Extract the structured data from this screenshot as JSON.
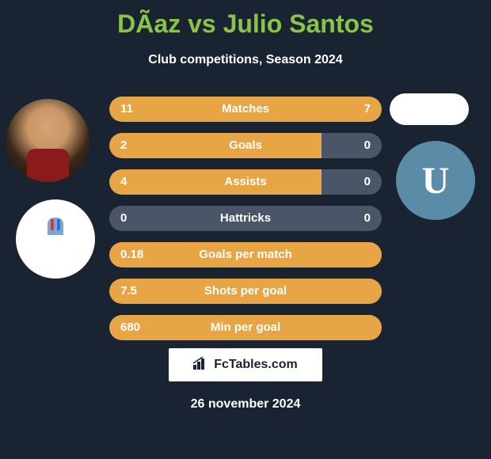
{
  "title": "DÃ­az vs Julio Santos",
  "subtitle": "Club competitions, Season 2024",
  "date": "26 november 2024",
  "logo_text": "FcTables.com",
  "club_right_letter": "U",
  "colors": {
    "background": "#1a2332",
    "accent": "#8bc34a",
    "bar_active": "#e8a545",
    "bar_inactive": "#4a5568",
    "club_right_bg": "#5a8ca8"
  },
  "stats": [
    {
      "label": "Matches",
      "left_value": "11",
      "right_value": "7",
      "left_width_pct": 61,
      "right_width_pct": 39,
      "left_active": true,
      "right_active": true
    },
    {
      "label": "Goals",
      "left_value": "2",
      "right_value": "0",
      "left_width_pct": 78,
      "right_width_pct": 0,
      "left_active": true,
      "right_active": false
    },
    {
      "label": "Assists",
      "left_value": "4",
      "right_value": "0",
      "left_width_pct": 78,
      "right_width_pct": 0,
      "left_active": true,
      "right_active": false
    },
    {
      "label": "Hattricks",
      "left_value": "0",
      "right_value": "0",
      "left_width_pct": 0,
      "right_width_pct": 0,
      "left_active": false,
      "right_active": false
    },
    {
      "label": "Goals per match",
      "left_value": "0.18",
      "right_value": "",
      "left_width_pct": 100,
      "right_width_pct": 0,
      "left_active": true,
      "right_active": false
    },
    {
      "label": "Shots per goal",
      "left_value": "7.5",
      "right_value": "",
      "left_width_pct": 100,
      "right_width_pct": 0,
      "left_active": true,
      "right_active": false
    },
    {
      "label": "Min per goal",
      "left_value": "680",
      "right_value": "",
      "left_width_pct": 100,
      "right_width_pct": 0,
      "left_active": true,
      "right_active": false
    }
  ]
}
